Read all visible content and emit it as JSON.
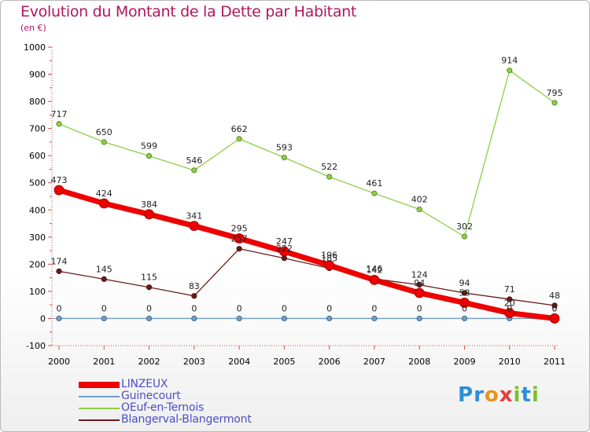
{
  "title": "Evolution du Montant de la Dette par Habitant",
  "subtitle": "(en €)",
  "brand": {
    "letters": [
      "P",
      "r",
      "o",
      "x",
      "i",
      "t",
      "i"
    ],
    "colors": [
      "#2a8fd8",
      "#2a8fd8",
      "#e79320",
      "#e43c3c",
      "#7cbf2b",
      "#2a8fd8",
      "#7cbf2b"
    ]
  },
  "chart_data": {
    "type": "line",
    "title": "Evolution du Montant de la Dette par Habitant",
    "ylabel": "(en €)",
    "x": [
      "2000",
      "2001",
      "2002",
      "2003",
      "2004",
      "2005",
      "2006",
      "2007",
      "2008",
      "2009",
      "2010",
      "2011"
    ],
    "ylim": [
      -100,
      1000
    ],
    "yticks": [
      -100,
      0,
      100,
      200,
      300,
      400,
      500,
      600,
      700,
      800,
      900,
      1000
    ],
    "grid": false,
    "legend_position": "bottom-left",
    "series": [
      {
        "name": "Blangerval-Blangermont",
        "color": "#6b1a1a",
        "values": [
          174,
          145,
          115,
          83,
          257,
          222,
          185,
          146,
          124,
          94,
          71,
          48
        ],
        "labels": [
          "174",
          "145",
          "115",
          "83",
          "257",
          "222",
          "185",
          "146",
          "124",
          "94",
          "71",
          "48"
        ]
      },
      {
        "name": "OEuf-en-Ternois",
        "color": "#8ccf44",
        "values": [
          717,
          650,
          599,
          546,
          662,
          593,
          522,
          461,
          402,
          302,
          914,
          795
        ],
        "labels": [
          "717",
          "650",
          "599",
          "546",
          "662",
          "593",
          "522",
          "461",
          "402",
          "302",
          "914",
          "795"
        ]
      },
      {
        "name": "Guinecourt",
        "color": "#6e9ec8",
        "values": [
          0,
          0,
          0,
          0,
          0,
          0,
          0,
          0,
          0,
          0,
          0,
          0
        ],
        "labels": [
          "0",
          "0",
          "0",
          "0",
          "0",
          "0",
          "0",
          "0",
          "0",
          "0",
          "0",
          "0"
        ]
      },
      {
        "name": "LINZEUX",
        "color": "#ee0000",
        "values": [
          473,
          424,
          384,
          341,
          295,
          247,
          196,
          142,
          94,
          58,
          20,
          0
        ],
        "labels": [
          "473",
          "424",
          "384",
          "341",
          "295",
          "247",
          "196",
          "142",
          "94",
          "58",
          "20",
          "0"
        ]
      }
    ],
    "legend": [
      "LINZEUX",
      "Guinecourt",
      "OEuf-en-Ternois",
      "Blangerval-Blangermont"
    ]
  }
}
